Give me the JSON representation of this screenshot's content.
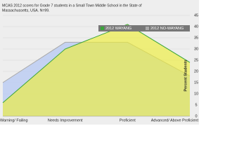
{
  "chart_data": {
    "type": "area",
    "title": [
      "MCAS  2012 scores for Grade 7 students in a Small Town Middle School in the State of",
      "Massachussetts, USA. N=99."
    ],
    "y_label": "Percent Students",
    "categories": [
      "Warning/ Failing",
      "Needs Improvement",
      "Proficient",
      "Advanced/ Above Proficient"
    ],
    "series": [
      {
        "name": "2012 NO-WAYANG",
        "color": "#a9a9a9",
        "fill": "#bccdf2",
        "values": [
          15,
          33,
          33,
          18
        ]
      },
      {
        "name": "2012 WAYANG",
        "color": "#3aa53a",
        "fill": "#eeee3a",
        "values": [
          6,
          30,
          41,
          24
        ]
      }
    ],
    "ylim": [
      0,
      45
    ],
    "yticks": [
      0,
      5,
      10,
      15,
      20,
      25,
      30,
      35,
      40,
      45
    ],
    "grid": true
  }
}
